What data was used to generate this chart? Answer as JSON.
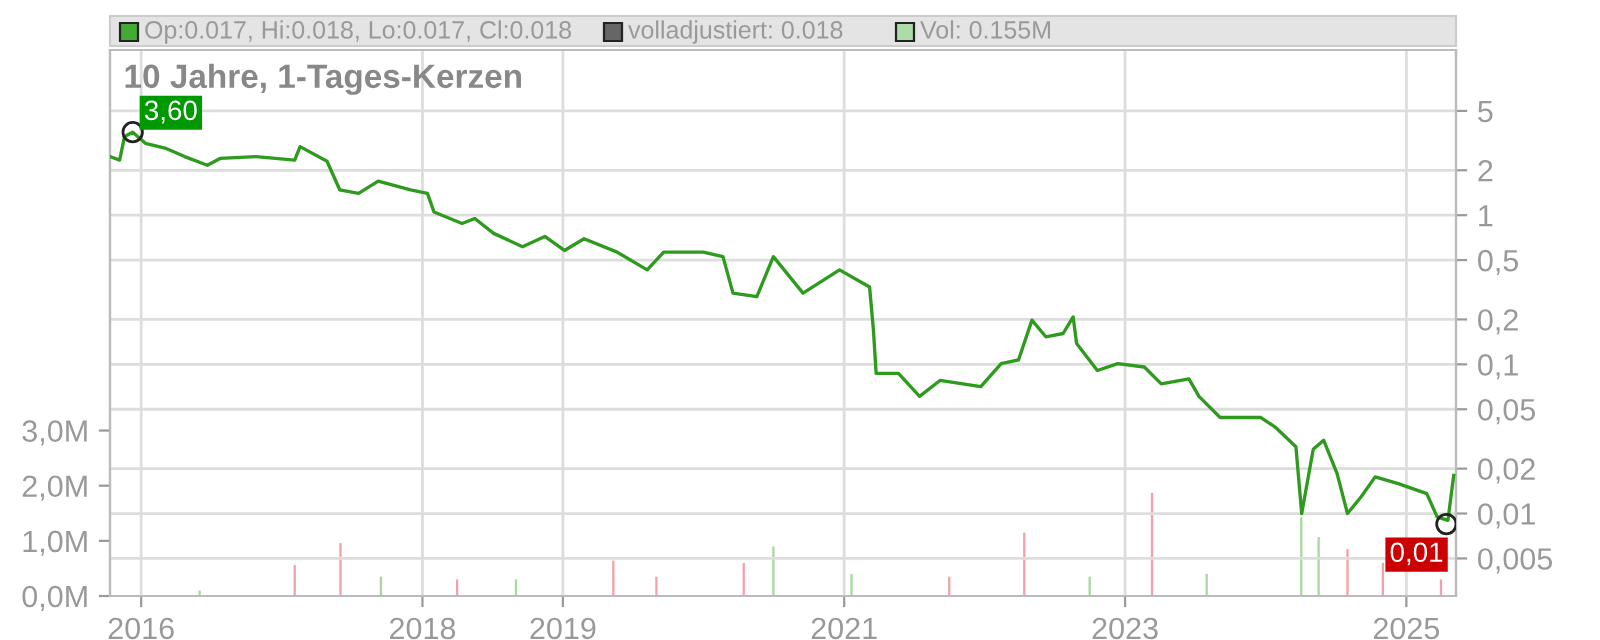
{
  "chart_data": {
    "type": "line",
    "title": "10 Jahre, 1-Tages-Kerzen",
    "annotations": [
      "Op:0.017, Hi:0.018, Lo:0.017, Cl:0.018",
      "volladjustiert: 0.018",
      "Vol: 0.155M",
      {
        "text": "3,60",
        "x": "2015-12-10",
        "y": 3.6
      },
      {
        "text": "0,01",
        "x": "2025-04-15",
        "y": 0.0085
      }
    ],
    "series": [
      {
        "color": "#2e9a1e",
        "x": [
          "2015-10-12",
          "2015-11-06",
          "2015-11-19",
          "2015-12-10",
          "2016-01-12",
          "2016-03-03",
          "2016-04-23",
          "2016-06-21",
          "2016-07-24",
          "2016-10-25",
          "2017-02-03",
          "2017-02-17",
          "2017-04-28",
          "2017-05-31",
          "2017-07-19",
          "2017-09-08",
          "2017-12-01",
          "2018-01-14",
          "2018-01-31",
          "2018-04-14",
          "2018-05-17",
          "2018-07-05",
          "2018-09-18",
          "2018-11-15",
          "2019-01-05",
          "2019-02-25",
          "2019-05-22",
          "2019-08-08",
          "2019-09-20",
          "2020-01-01",
          "2020-02-21",
          "2020-03-18",
          "2020-05-19",
          "2020-07-01",
          "2020-09-16",
          "2020-12-20",
          "2021-03-08",
          "2021-03-18",
          "2021-03-25",
          "2021-05-22",
          "2021-07-16",
          "2021-09-07",
          "2021-12-22",
          "2022-02-13",
          "2022-03-30",
          "2022-05-04",
          "2022-06-09",
          "2022-07-24",
          "2022-08-19",
          "2022-08-28",
          "2022-10-21",
          "2022-12-13",
          "2023-02-20",
          "2023-04-05",
          "2023-06-16",
          "2023-07-12",
          "2023-09-05",
          "2023-12-20",
          "2024-01-26",
          "2024-03-20",
          "2024-04-04",
          "2024-05-04",
          "2024-05-31",
          "2024-07-05",
          "2024-08-01",
          "2024-09-06",
          "2024-10-12",
          "2024-12-13",
          "2025-02-23",
          "2025-03-22",
          "2025-04-19",
          "2025-05-04"
        ],
        "values": [
          2.47,
          2.34,
          3.37,
          3.6,
          3.03,
          2.82,
          2.47,
          2.16,
          2.4,
          2.47,
          2.34,
          2.88,
          2.3,
          1.48,
          1.4,
          1.69,
          1.48,
          1.4,
          1.05,
          0.88,
          0.95,
          0.755,
          0.615,
          0.72,
          0.58,
          0.695,
          0.565,
          0.43,
          0.565,
          0.565,
          0.527,
          0.3,
          0.284,
          0.527,
          0.3,
          0.43,
          0.33,
          0.17,
          0.087,
          0.087,
          0.061,
          0.078,
          0.071,
          0.101,
          0.107,
          0.198,
          0.153,
          0.161,
          0.208,
          0.138,
          0.091,
          0.101,
          0.096,
          0.074,
          0.08,
          0.061,
          0.044,
          0.044,
          0.038,
          0.028,
          0.01,
          0.027,
          0.031,
          0.0185,
          0.01,
          0.013,
          0.0176,
          0.0158,
          0.0136,
          0.0095,
          0.009,
          0.018
        ]
      },
      {
        "type": "bar",
        "axis": "y2",
        "x": [
          "2016-06-01",
          "2017-02-03",
          "2017-06-02",
          "2017-09-15",
          "2018-04-01",
          "2018-09-01",
          "2019-05-12",
          "2019-09-01",
          "2020-04-15",
          "2020-07-01",
          "2021-01-20",
          "2021-10-01",
          "2022-04-14",
          "2022-10-01",
          "2023-03-12",
          "2023-08-01",
          "2024-04-03",
          "2024-05-18",
          "2024-08-01",
          "2024-11-01",
          "2025-04-01"
        ],
        "colors": [
          "#a8d8a0",
          "#f4a0a8",
          "#f4a0a8",
          "#a8d8a0",
          "#f4a0a8",
          "#a8d8a0",
          "#f4a0a8",
          "#f4a0a8",
          "#f4a0a8",
          "#a8d8a0",
          "#a8d8a0",
          "#f4a0a8",
          "#f4a0a8",
          "#a8d8a0",
          "#f4a0a8",
          "#a8d8a0",
          "#a8d8a0",
          "#a8d8a0",
          "#f4a0a8",
          "#f4a0a8",
          "#f4a0a8"
        ],
        "values": [
          0.1,
          0.56,
          0.96,
          0.35,
          0.3,
          0.3,
          0.64,
          0.35,
          0.6,
          0.9,
          0.4,
          0.35,
          1.15,
          0.35,
          1.87,
          0.4,
          1.43,
          1.07,
          0.85,
          0.6,
          0.3
        ]
      }
    ],
    "log": "y",
    "grid": true,
    "xlim": [
      "2015-10-12",
      "2025-05-10"
    ],
    "xticks": [
      {
        "value": "2016-01-01",
        "label": "2016"
      },
      {
        "value": "2018-01-01",
        "label": "2018"
      },
      {
        "value": "2019-01-01",
        "label": "2019"
      },
      {
        "value": "2021-01-01",
        "label": "2021"
      },
      {
        "value": "2023-01-01",
        "label": "2023"
      },
      {
        "value": "2025-01-01",
        "label": "2025"
      }
    ],
    "ylim": [
      0.0028,
      12.8
    ],
    "yticks": [
      5,
      2,
      1,
      {
        "value": 0.5,
        "label": "0,5"
      },
      {
        "value": 0.2,
        "label": "0,2"
      },
      {
        "value": 0.1,
        "label": "0,1"
      },
      {
        "value": 0.05,
        "label": "0,05"
      },
      {
        "value": 0.02,
        "label": "0,02"
      },
      {
        "value": 0.01,
        "label": "0,01"
      },
      {
        "value": 0.005,
        "label": "0,005"
      }
    ],
    "y2lim": [
      0,
      9.9
    ],
    "y2ticks": [
      {
        "value": 0,
        "label": "0,0M"
      },
      {
        "value": 1,
        "label": "1,0M"
      },
      {
        "value": 2,
        "label": "2,0M"
      },
      {
        "value": 3,
        "label": "3,0M"
      }
    ]
  }
}
